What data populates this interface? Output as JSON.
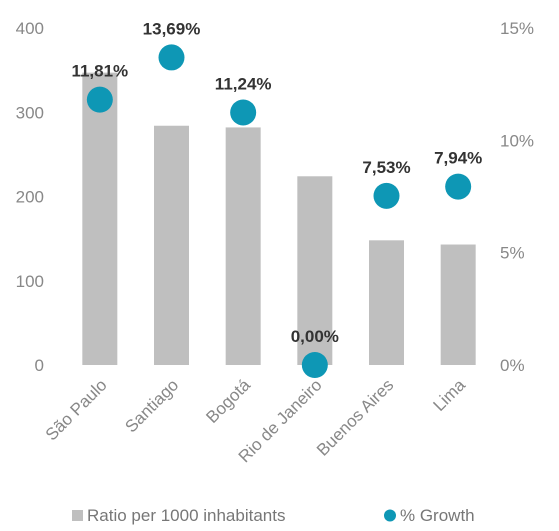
{
  "chart_data": {
    "type": "bar",
    "categories": [
      "São Paulo",
      "Santiago",
      "Bogotá",
      "Rio de Janeiro",
      "Buenos Aires",
      "Lima"
    ],
    "series": [
      {
        "name": "Ratio per 1000 inhabitants",
        "type": "bar",
        "axis": "left",
        "color": "#BFBFBF",
        "values": [
          347,
          284,
          282,
          224,
          148,
          143
        ]
      },
      {
        "name": "% Growth",
        "type": "scatter",
        "axis": "right",
        "color": "#0E97B5",
        "values": [
          11.81,
          13.69,
          11.24,
          0.0,
          7.53,
          7.94
        ],
        "labels": [
          "11,81%",
          "13,69%",
          "11,24%",
          "0,00%",
          "7,53%",
          "7,94%"
        ]
      }
    ],
    "y_left": {
      "ylim": [
        0,
        400
      ],
      "ticks": [
        "0",
        "100",
        "200",
        "300",
        "400"
      ]
    },
    "y_right": {
      "ylim": [
        0,
        15
      ],
      "ticks": [
        "0%",
        "5%",
        "10%",
        "15%"
      ]
    },
    "grid": false,
    "legend_position": "bottom"
  }
}
